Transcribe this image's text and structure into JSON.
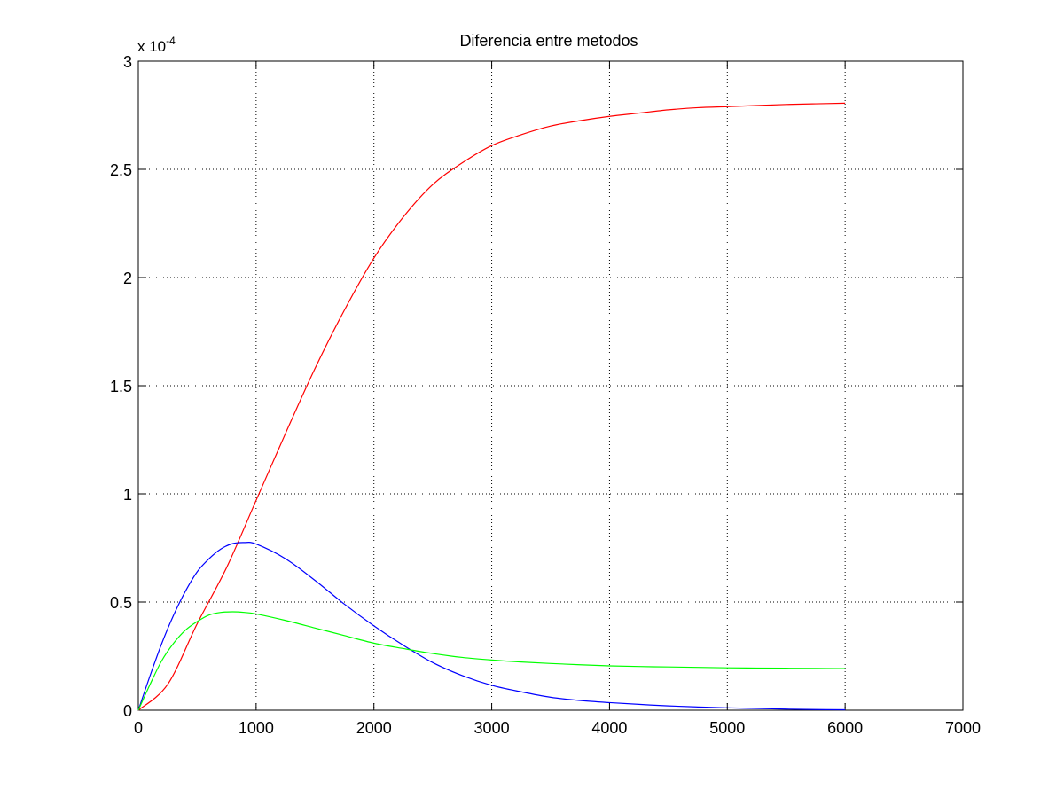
{
  "chart_data": {
    "type": "line",
    "title": "Diferencia entre metodos",
    "xlabel": "",
    "ylabel": "",
    "xlim": [
      0,
      7000
    ],
    "ylim": [
      0,
      3
    ],
    "y_multiplier_base": "x 10",
    "y_multiplier_exponent": "-4",
    "x_ticks": [
      0,
      1000,
      2000,
      3000,
      4000,
      5000,
      6000,
      7000
    ],
    "x_tick_labels": [
      "0",
      "1000",
      "2000",
      "3000",
      "4000",
      "5000",
      "6000",
      "7000"
    ],
    "y_ticks": [
      0,
      0.5,
      1,
      1.5,
      2,
      2.5,
      3
    ],
    "y_tick_labels": [
      "0",
      "0.5",
      "1",
      "1.5",
      "2",
      "2.5",
      "3"
    ],
    "grid": true,
    "legend": "none",
    "series": [
      {
        "color": "#ff0000",
        "x": [
          0,
          250,
          500,
          750,
          1000,
          1250,
          1500,
          1750,
          2000,
          2250,
          2500,
          2750,
          3000,
          3250,
          3500,
          3750,
          4000,
          4250,
          4500,
          4750,
          5000,
          5250,
          5500,
          5750,
          6000
        ],
        "y": [
          0,
          0.12,
          0.4,
          0.66,
          0.97,
          1.28,
          1.58,
          1.85,
          2.09,
          2.28,
          2.43,
          2.53,
          2.61,
          2.66,
          2.7,
          2.725,
          2.745,
          2.76,
          2.775,
          2.785,
          2.79,
          2.795,
          2.8,
          2.803,
          2.806
        ]
      },
      {
        "color": "#0000ff",
        "x": [
          0,
          100,
          200,
          300,
          400,
          500,
          600,
          700,
          800,
          900,
          1000,
          1250,
          1500,
          1750,
          2000,
          2250,
          2500,
          2750,
          3000,
          3250,
          3500,
          3750,
          4000,
          4250,
          4500,
          4750,
          5000,
          5250,
          5500,
          5750,
          6000
        ],
        "y": [
          0,
          0.16,
          0.31,
          0.44,
          0.55,
          0.64,
          0.7,
          0.745,
          0.77,
          0.775,
          0.768,
          0.7,
          0.6,
          0.49,
          0.39,
          0.3,
          0.22,
          0.16,
          0.115,
          0.085,
          0.06,
          0.045,
          0.035,
          0.027,
          0.02,
          0.015,
          0.011,
          0.008,
          0.005,
          0.003,
          0.002
        ]
      },
      {
        "color": "#00ff00",
        "x": [
          0,
          100,
          200,
          300,
          400,
          500,
          600,
          700,
          800,
          900,
          1000,
          1250,
          1500,
          1750,
          2000,
          2250,
          2500,
          2750,
          3000,
          3250,
          3500,
          3750,
          4000,
          4250,
          4500,
          4750,
          5000,
          5250,
          5500,
          5750,
          6000
        ],
        "y": [
          0,
          0.12,
          0.23,
          0.31,
          0.37,
          0.41,
          0.44,
          0.452,
          0.455,
          0.452,
          0.445,
          0.415,
          0.38,
          0.345,
          0.31,
          0.285,
          0.262,
          0.244,
          0.232,
          0.223,
          0.216,
          0.21,
          0.205,
          0.202,
          0.2,
          0.198,
          0.196,
          0.195,
          0.194,
          0.193,
          0.192
        ]
      }
    ]
  }
}
